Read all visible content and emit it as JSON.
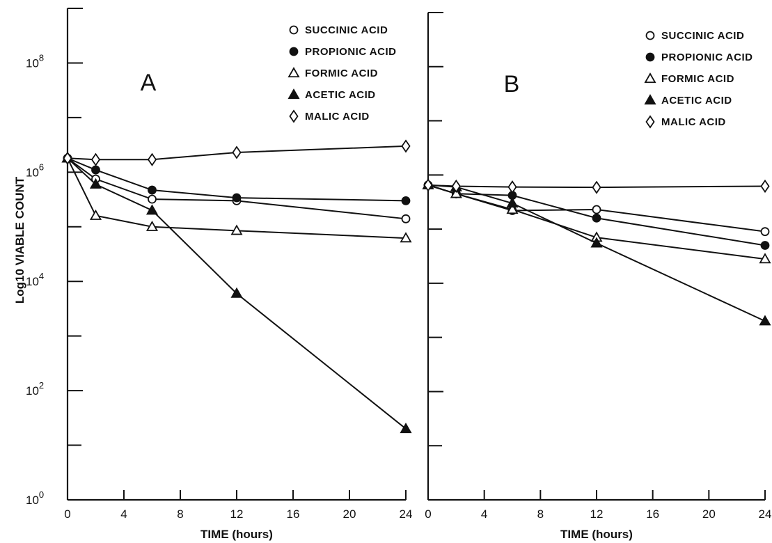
{
  "chart_data": [
    {
      "type": "line",
      "panel_label": "A",
      "xlabel": "TIME (hours)",
      "ylabel": "Log10 VIABLE COUNT",
      "y_scale": "log",
      "xlim": [
        0,
        24
      ],
      "ylim": [
        1,
        1000000000
      ],
      "x_ticks": [
        "0",
        "4",
        "8",
        "12",
        "16",
        "20",
        "24"
      ],
      "y_tick_labels": [
        {
          "base": "10",
          "exp": "0"
        },
        {
          "base": "10",
          "exp": "2"
        },
        {
          "base": "10",
          "exp": "4"
        },
        {
          "base": "10",
          "exp": "6"
        },
        {
          "base": "10",
          "exp": "8"
        }
      ],
      "legend_position": "top-right",
      "series": [
        {
          "name": "SUCCINIC ACID",
          "marker": "circle-open",
          "x": [
            0,
            2,
            6,
            12,
            24
          ],
          "y": [
            1800000,
            750000,
            320000,
            300000,
            140000
          ]
        },
        {
          "name": "PROPIONIC ACID",
          "marker": "circle-filled",
          "x": [
            0,
            2,
            6,
            12,
            24
          ],
          "y": [
            1800000,
            1100000,
            470000,
            340000,
            300000
          ]
        },
        {
          "name": "FORMIC ACID",
          "marker": "triangle-open",
          "x": [
            0,
            2,
            6,
            12,
            24
          ],
          "y": [
            1800000,
            160000,
            100000,
            85000,
            62000
          ]
        },
        {
          "name": "ACETIC ACID",
          "marker": "triangle-filled",
          "x": [
            0,
            2,
            6,
            12,
            24
          ],
          "y": [
            1800000,
            600000,
            200000,
            6000,
            20
          ]
        },
        {
          "name": "MALIC ACID",
          "marker": "diamond-open",
          "x": [
            0,
            2,
            6,
            12,
            24
          ],
          "y": [
            1800000,
            1700000,
            1700000,
            2300000,
            3000000
          ]
        }
      ]
    },
    {
      "type": "line",
      "panel_label": "B",
      "xlabel": "TIME (hours)",
      "ylabel": "",
      "y_scale": "log",
      "xlim": [
        0,
        24
      ],
      "ylim": [
        1,
        1000000000
      ],
      "x_ticks": [
        "0",
        "4",
        "8",
        "12",
        "16",
        "20",
        "24"
      ],
      "y_tick_labels": [],
      "legend_position": "top-right",
      "series": [
        {
          "name": "SUCCINIC ACID",
          "marker": "circle-open",
          "x": [
            0,
            2,
            6,
            12,
            24
          ],
          "y": [
            650000,
            450000,
            220000,
            230000,
            90000
          ]
        },
        {
          "name": "PROPIONIC ACID",
          "marker": "circle-filled",
          "x": [
            0,
            2,
            6,
            12,
            24
          ],
          "y": [
            650000,
            450000,
            420000,
            160000,
            50000
          ]
        },
        {
          "name": "FORMIC ACID",
          "marker": "triangle-open",
          "x": [
            0,
            2,
            6,
            12,
            24
          ],
          "y": [
            650000,
            450000,
            230000,
            70000,
            28000
          ]
        },
        {
          "name": "ACETIC ACID",
          "marker": "triangle-filled",
          "x": [
            0,
            2,
            6,
            12,
            24
          ],
          "y": [
            650000,
            600000,
            300000,
            55000,
            2000
          ]
        },
        {
          "name": "MALIC ACID",
          "marker": "diamond-open",
          "x": [
            0,
            2,
            6,
            12,
            24
          ],
          "y": [
            650000,
            620000,
            600000,
            590000,
            620000
          ]
        }
      ]
    }
  ]
}
